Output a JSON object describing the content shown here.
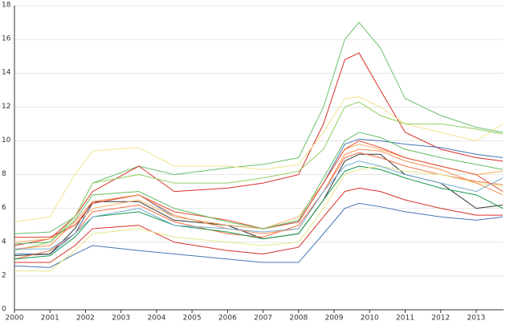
{
  "chart_data": {
    "type": "line",
    "x": [
      2000,
      2001,
      2001.7,
      2002.2,
      2003.5,
      2004.5,
      2006,
      2007,
      2008,
      2008.7,
      2009.3,
      2009.7,
      2010.3,
      2011,
      2012,
      2013,
      2013.75
    ],
    "series": [
      {
        "color": "#6bbf6b",
        "values": [
          4.5,
          4.6,
          5.5,
          7.5,
          8.5,
          8.0,
          8.4,
          8.6,
          9.0,
          12.0,
          16.0,
          17.0,
          15.5,
          12.5,
          11.5,
          10.8,
          10.5
        ]
      },
      {
        "color": "#d73027",
        "values": [
          3.8,
          4.2,
          5.5,
          7.0,
          8.5,
          7.0,
          7.2,
          7.5,
          8.0,
          11.0,
          14.8,
          15.2,
          13.0,
          10.5,
          9.5,
          9.0,
          8.8
        ]
      },
      {
        "color": "#f2e38a",
        "values": [
          5.2,
          5.5,
          8.0,
          9.4,
          9.6,
          8.5,
          8.5,
          8.3,
          8.6,
          10.5,
          12.5,
          12.6,
          12.0,
          11.0,
          10.5,
          10.0,
          11.0
        ]
      },
      {
        "color": "#91cf60",
        "values": [
          3.5,
          4.0,
          5.5,
          7.5,
          8.0,
          7.5,
          7.5,
          7.8,
          8.2,
          9.5,
          12.0,
          12.3,
          11.5,
          11.0,
          11.0,
          10.7,
          10.4
        ]
      },
      {
        "color": "#4575b4",
        "values": [
          3.3,
          3.3,
          4.5,
          6.3,
          6.8,
          5.5,
          5.0,
          4.8,
          5.2,
          7.5,
          9.8,
          10.1,
          10.0,
          9.8,
          9.6,
          9.2,
          9.0
        ]
      },
      {
        "color": "#333333",
        "values": [
          3.2,
          3.3,
          4.8,
          6.4,
          6.4,
          5.3,
          5.0,
          4.2,
          4.5,
          6.5,
          8.8,
          9.2,
          9.2,
          8.0,
          7.5,
          6.0,
          6.2
        ]
      },
      {
        "color": "#f46d43",
        "values": [
          3.0,
          3.5,
          4.5,
          5.8,
          6.2,
          5.2,
          4.5,
          4.3,
          5.0,
          7.0,
          9.0,
          9.3,
          9.0,
          8.5,
          8.0,
          7.6,
          7.4
        ]
      },
      {
        "color": "#fdae61",
        "values": [
          4.0,
          4.2,
          5.0,
          6.0,
          6.5,
          5.5,
          5.0,
          4.8,
          5.5,
          7.5,
          9.5,
          9.8,
          9.5,
          9.0,
          8.5,
          8.0,
          8.2
        ]
      },
      {
        "color": "#d73027",
        "values": [
          2.8,
          2.8,
          3.8,
          4.8,
          5.0,
          4.0,
          3.5,
          3.3,
          3.7,
          5.5,
          7.0,
          7.2,
          7.0,
          6.5,
          6.0,
          5.6,
          5.6
        ]
      },
      {
        "color": "#4575b4",
        "values": [
          2.6,
          2.5,
          3.3,
          3.8,
          3.5,
          3.3,
          3.0,
          2.8,
          2.8,
          4.5,
          6.0,
          6.3,
          6.1,
          5.8,
          5.5,
          5.3,
          5.5
        ]
      },
      {
        "color": "#1a9850",
        "values": [
          3.0,
          3.2,
          4.3,
          5.5,
          5.8,
          5.0,
          4.6,
          4.2,
          4.5,
          6.5,
          8.2,
          8.5,
          8.3,
          7.8,
          7.2,
          6.8,
          6.0
        ]
      },
      {
        "color": "#e6e68a",
        "values": [
          2.3,
          2.3,
          3.5,
          4.5,
          4.8,
          4.3,
          4.0,
          3.8,
          4.0,
          6.0,
          8.0,
          8.3,
          8.5,
          8.2,
          8.0,
          7.5,
          7.3
        ]
      },
      {
        "color": "#e34a33",
        "values": [
          4.3,
          4.3,
          5.0,
          6.3,
          6.8,
          5.8,
          5.3,
          4.8,
          5.2,
          7.5,
          9.5,
          10.0,
          9.6,
          9.0,
          8.5,
          8.0,
          7.0
        ]
      },
      {
        "color": "#f98e52",
        "values": [
          3.6,
          3.8,
          5.2,
          6.4,
          6.8,
          5.6,
          4.8,
          4.5,
          4.8,
          7.0,
          9.2,
          9.5,
          9.4,
          8.8,
          8.3,
          7.5,
          6.8
        ]
      },
      {
        "color": "#74add1",
        "values": [
          3.6,
          3.6,
          4.5,
          5.5,
          6.0,
          5.0,
          4.8,
          4.6,
          4.8,
          7.0,
          8.5,
          8.8,
          8.5,
          8.0,
          7.5,
          7.0,
          7.8
        ]
      },
      {
        "color": "#66bd63",
        "values": [
          3.9,
          4.0,
          5.3,
          6.8,
          7.0,
          6.0,
          5.2,
          4.8,
          5.3,
          7.8,
          10.0,
          10.5,
          10.2,
          9.5,
          9.0,
          8.6,
          8.3
        ]
      }
    ],
    "xlim": [
      2000,
      2013.77
    ],
    "xticks": [
      2000,
      2001,
      2002,
      2003,
      2004,
      2005,
      2006,
      2007,
      2008,
      2009,
      2010,
      2011,
      2012,
      2013
    ],
    "ylim": [
      0,
      18
    ],
    "yticks": [
      0,
      2,
      4,
      6,
      8,
      10,
      12,
      14,
      16,
      18
    ],
    "grid": true
  }
}
